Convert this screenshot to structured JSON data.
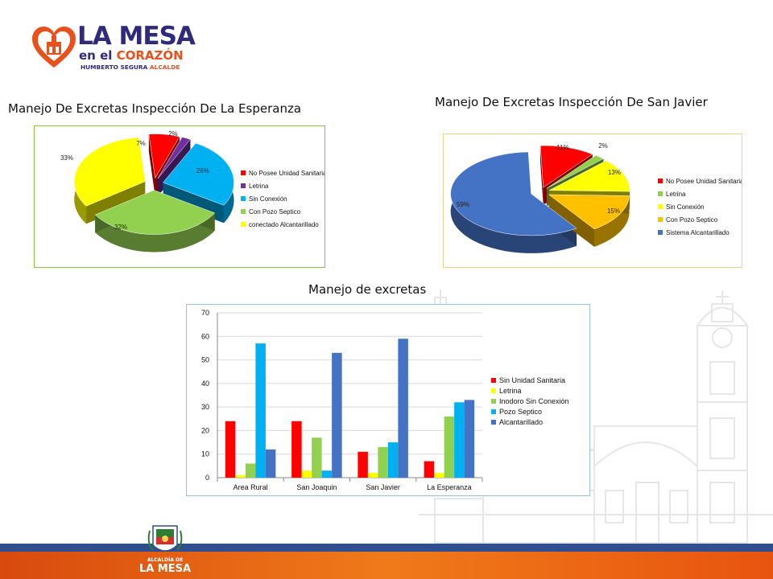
{
  "logo": {
    "line1": "LA MESA",
    "line2a": "en el ",
    "line2b": "CORAZÓN",
    "line3a": "HUMBERTO SEGURA ",
    "line3b": "ALCALDE"
  },
  "footer": {
    "small": "ALCALDÍA DE",
    "big": "LA MESA"
  },
  "colors": {
    "red": "#ff0000",
    "purple": "#7030a0",
    "cyan": "#00b0f0",
    "green": "#92d050",
    "yellow": "#ffff00",
    "orange": "#ffc000",
    "blue": "#4472c4",
    "barBlue": "#4472c4",
    "stripeOrange": "#e8540f",
    "stripeBlue": "#2f4f8f"
  },
  "chart_data": [
    {
      "type": "pie",
      "title": "Manejo De Excretas Inspección De La Esperanza",
      "labels": [
        "No Posee Unidad Sanitaria",
        "Letrina",
        "Sin Conexión",
        "Con Pozo Septico",
        "conectado Alcantarillado"
      ],
      "values": [
        7,
        2,
        26,
        32,
        33
      ],
      "value_labels": [
        "7%",
        "2%",
        "26%",
        "32%",
        "33%"
      ],
      "legend": "right",
      "style": "3d-exploded"
    },
    {
      "type": "pie",
      "title": "Manejo De Excretas Inspección De San Javier",
      "labels": [
        "No Posee Unidad Sanitaria",
        "Letrina",
        "Sin Conexión",
        "Con Pozo Septico",
        "Sistema Alcantarillado"
      ],
      "values": [
        11,
        2,
        13,
        15,
        59
      ],
      "value_labels": [
        "11%",
        "2%",
        "13%",
        "15%",
        "59%"
      ],
      "legend": "right",
      "style": "3d-exploded"
    },
    {
      "type": "bar",
      "title": "Manejo de excretas",
      "categories": [
        "Area Rural",
        "San Joaquin",
        "San Javier",
        "La Esperanza"
      ],
      "series": [
        {
          "name": "Sin Unidad Sanitaria",
          "values": [
            24,
            24,
            11,
            7
          ]
        },
        {
          "name": "Letrina",
          "values": [
            1,
            3,
            2,
            2
          ]
        },
        {
          "name": "Inodoro Sin Conexión",
          "values": [
            6,
            17,
            13,
            26
          ]
        },
        {
          "name": "Pozo Septico",
          "values": [
            57,
            3,
            15,
            32
          ]
        },
        {
          "name": "Alcantarillado",
          "values": [
            12,
            53,
            59,
            33
          ]
        }
      ],
      "ylim": [
        0,
        70
      ],
      "yticks": [
        0,
        10,
        20,
        30,
        40,
        50,
        60,
        70
      ],
      "grid": true,
      "legend": "right"
    }
  ]
}
